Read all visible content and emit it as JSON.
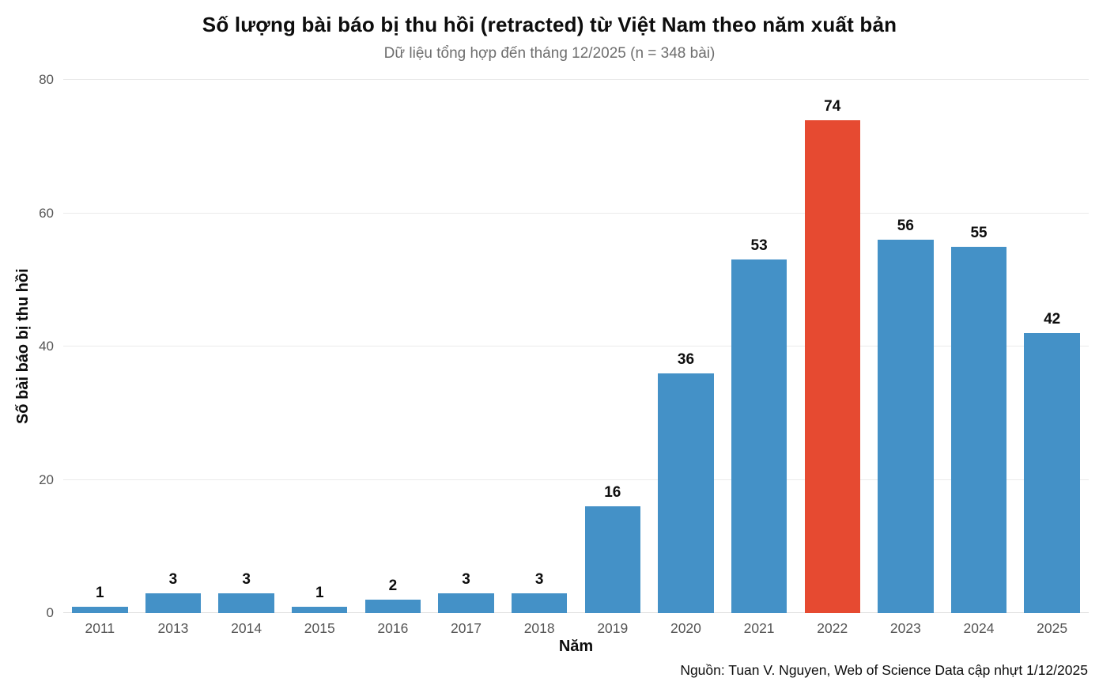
{
  "chart_data": {
    "type": "bar",
    "title": "Số lượng bài báo bị thu hồi (retracted) từ Việt Nam theo năm xuất bản",
    "subtitle": "Dữ liệu tổng hợp đến tháng 12/2025 (n = 348 bài)",
    "xlabel": "Năm",
    "ylabel": "Số bài báo bị thu hồi",
    "categories": [
      "2011",
      "2013",
      "2014",
      "2015",
      "2016",
      "2017",
      "2018",
      "2019",
      "2020",
      "2021",
      "2022",
      "2023",
      "2024",
      "2025"
    ],
    "values": [
      1,
      3,
      3,
      1,
      2,
      3,
      3,
      16,
      36,
      53,
      74,
      56,
      55,
      42
    ],
    "highlighted_category": "2022",
    "ylim": [
      0,
      80
    ],
    "yticks": [
      0,
      20,
      40,
      60,
      80
    ],
    "grid": "horizontal-light",
    "legend": "none",
    "source": "Nguồn: Tuan V. Nguyen, Web of Science Data cập nhựt 1/12/2025",
    "colors": {
      "bar": "#4491C7",
      "highlight_bar": "#E64A31",
      "value_label": "#0d0d0d",
      "axis_text": "#555555",
      "subtitle_text": "#6e6e6e",
      "gridline": "#eaeaea",
      "baseline": "#dedede"
    }
  }
}
